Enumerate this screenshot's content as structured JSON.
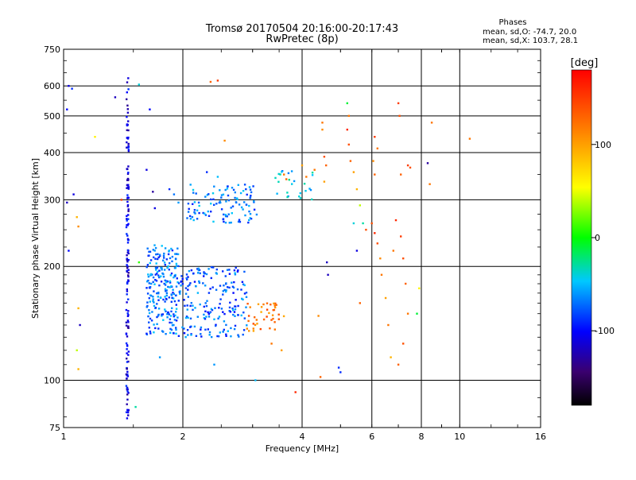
{
  "header": {
    "title_line1": "Tromsø 20170504 20:16:00-20:17:43",
    "title_line2": "RwPretec (8p)",
    "stats_heading": "Phases",
    "stats_o": "mean, sd,O: -74.7, 20.0",
    "stats_x": "mean, sd,X: 103.7, 28.1"
  },
  "colorbar": {
    "unit_label": "[deg]",
    "ticks": [
      {
        "value": 100,
        "label": "100"
      },
      {
        "value": 0,
        "label": "0"
      },
      {
        "value": -100,
        "label": "-100"
      }
    ],
    "range": [
      -180,
      180
    ]
  },
  "chart_data": {
    "type": "scatter",
    "title": "Tromsø 20170504 20:16:00-20:17:43",
    "subtitle": "RwPretec (8p)",
    "xlabel": "Frequency [MHz]",
    "ylabel": "Stationary phase Virtual Height [km]",
    "xscale": "log",
    "yscale": "log",
    "xlim": [
      1,
      16
    ],
    "ylim": [
      75,
      750
    ],
    "xticks": [
      1,
      2,
      4,
      6,
      8,
      10,
      16
    ],
    "yticks": [
      75,
      100,
      200,
      300,
      400,
      500,
      600,
      750
    ],
    "xgrid": [
      2,
      4,
      6,
      8,
      10
    ],
    "ygrid": [
      100,
      200,
      300,
      400,
      500,
      600
    ],
    "color_variable": "phase [deg]",
    "clusters": [
      {
        "name": "vertical streak",
        "f_min": 1.44,
        "f_max": 1.46,
        "h_min": 78,
        "h_max": 635,
        "phase": -110,
        "count": 150
      },
      {
        "name": "lower trace A",
        "f_min": 1.62,
        "f_max": 1.95,
        "h_min": 132,
        "h_max": 228,
        "phase": -70,
        "count": 220
      },
      {
        "name": "lower trace B",
        "f_min": 1.95,
        "f_max": 2.9,
        "h_min": 130,
        "h_max": 200,
        "phase": -75,
        "count": 200
      },
      {
        "name": "upper trace",
        "f_min": 2.05,
        "f_max": 3.1,
        "h_min": 260,
        "h_max": 330,
        "phase": -68,
        "count": 110
      },
      {
        "name": "mixed phase patch",
        "f_min": 2.9,
        "f_max": 3.6,
        "h_min": 135,
        "h_max": 160,
        "phase": 120,
        "count": 40
      },
      {
        "name": "rising trace",
        "f_min": 3.4,
        "f_max": 4.3,
        "h_min": 300,
        "h_max": 360,
        "phase": -50,
        "count": 25
      }
    ],
    "points": [
      {
        "f": 1.03,
        "h": 600,
        "phase": -110
      },
      {
        "f": 1.05,
        "h": 590,
        "phase": -90
      },
      {
        "f": 1.02,
        "h": 520,
        "phase": -100
      },
      {
        "f": 1.06,
        "h": 310,
        "phase": -110
      },
      {
        "f": 1.02,
        "h": 295,
        "phase": -120
      },
      {
        "f": 1.08,
        "h": 270,
        "phase": 90
      },
      {
        "f": 1.09,
        "h": 255,
        "phase": 110
      },
      {
        "f": 1.03,
        "h": 220,
        "phase": -100
      },
      {
        "f": 1.09,
        "h": 155,
        "phase": 90
      },
      {
        "f": 1.1,
        "h": 140,
        "phase": -120
      },
      {
        "f": 1.08,
        "h": 120,
        "phase": 40
      },
      {
        "f": 1.09,
        "h": 107,
        "phase": 90
      },
      {
        "f": 1.2,
        "h": 440,
        "phase": 60
      },
      {
        "f": 1.35,
        "h": 560,
        "phase": -120
      },
      {
        "f": 1.4,
        "h": 300,
        "phase": 150
      },
      {
        "f": 1.55,
        "h": 605,
        "phase": -40
      },
      {
        "f": 1.52,
        "h": 85,
        "phase": -30
      },
      {
        "f": 1.55,
        "h": 205,
        "phase": 10
      },
      {
        "f": 1.62,
        "h": 360,
        "phase": -110
      },
      {
        "f": 1.65,
        "h": 520,
        "phase": -100
      },
      {
        "f": 1.68,
        "h": 315,
        "phase": -130
      },
      {
        "f": 1.7,
        "h": 285,
        "phase": -110
      },
      {
        "f": 1.85,
        "h": 320,
        "phase": -90
      },
      {
        "f": 1.9,
        "h": 310,
        "phase": -70
      },
      {
        "f": 1.95,
        "h": 295,
        "phase": -60
      },
      {
        "f": 2.35,
        "h": 615,
        "phase": 130
      },
      {
        "f": 2.45,
        "h": 620,
        "phase": 150
      },
      {
        "f": 2.55,
        "h": 430,
        "phase": 110
      },
      {
        "f": 2.3,
        "h": 355,
        "phase": -90
      },
      {
        "f": 2.45,
        "h": 345,
        "phase": -50
      },
      {
        "f": 1.75,
        "h": 115,
        "phase": -60
      },
      {
        "f": 2.4,
        "h": 110,
        "phase": -60
      },
      {
        "f": 3.05,
        "h": 100,
        "phase": -50
      },
      {
        "f": 3.35,
        "h": 125,
        "phase": 120
      },
      {
        "f": 3.55,
        "h": 120,
        "phase": 100
      },
      {
        "f": 3.6,
        "h": 350,
        "phase": 120
      },
      {
        "f": 3.65,
        "h": 340,
        "phase": 130
      },
      {
        "f": 3.85,
        "h": 93,
        "phase": 160
      },
      {
        "f": 4.0,
        "h": 370,
        "phase": 100
      },
      {
        "f": 4.1,
        "h": 345,
        "phase": 120
      },
      {
        "f": 4.3,
        "h": 360,
        "phase": 120
      },
      {
        "f": 4.5,
        "h": 480,
        "phase": 120
      },
      {
        "f": 4.5,
        "h": 460,
        "phase": 110
      },
      {
        "f": 4.55,
        "h": 390,
        "phase": 140
      },
      {
        "f": 4.6,
        "h": 370,
        "phase": 130
      },
      {
        "f": 4.55,
        "h": 335,
        "phase": 100
      },
      {
        "f": 4.4,
        "h": 148,
        "phase": 110
      },
      {
        "f": 4.45,
        "h": 102,
        "phase": 130
      },
      {
        "f": 4.62,
        "h": 205,
        "phase": -120
      },
      {
        "f": 4.65,
        "h": 190,
        "phase": -120
      },
      {
        "f": 4.95,
        "h": 108,
        "phase": -90
      },
      {
        "f": 5.0,
        "h": 105,
        "phase": -90
      },
      {
        "f": 5.2,
        "h": 540,
        "phase": -10
      },
      {
        "f": 5.25,
        "h": 500,
        "phase": 120
      },
      {
        "f": 5.2,
        "h": 460,
        "phase": 160
      },
      {
        "f": 5.25,
        "h": 420,
        "phase": 140
      },
      {
        "f": 5.3,
        "h": 380,
        "phase": 130
      },
      {
        "f": 5.4,
        "h": 355,
        "phase": 100
      },
      {
        "f": 5.5,
        "h": 320,
        "phase": 90
      },
      {
        "f": 5.6,
        "h": 290,
        "phase": 40
      },
      {
        "f": 5.4,
        "h": 260,
        "phase": -40
      },
      {
        "f": 5.7,
        "h": 260,
        "phase": -30
      },
      {
        "f": 5.8,
        "h": 250,
        "phase": 140
      },
      {
        "f": 5.5,
        "h": 220,
        "phase": -110
      },
      {
        "f": 5.6,
        "h": 160,
        "phase": 130
      },
      {
        "f": 6.1,
        "h": 440,
        "phase": 150
      },
      {
        "f": 6.2,
        "h": 410,
        "phase": 120
      },
      {
        "f": 6.05,
        "h": 380,
        "phase": 110
      },
      {
        "f": 6.1,
        "h": 350,
        "phase": 130
      },
      {
        "f": 6.0,
        "h": 260,
        "phase": 140
      },
      {
        "f": 6.1,
        "h": 245,
        "phase": 160
      },
      {
        "f": 6.2,
        "h": 230,
        "phase": 140
      },
      {
        "f": 6.3,
        "h": 210,
        "phase": 110
      },
      {
        "f": 6.35,
        "h": 190,
        "phase": 120
      },
      {
        "f": 6.5,
        "h": 165,
        "phase": 100
      },
      {
        "f": 6.6,
        "h": 140,
        "phase": 120
      },
      {
        "f": 6.7,
        "h": 115,
        "phase": 90
      },
      {
        "f": 6.8,
        "h": 220,
        "phase": 120
      },
      {
        "f": 6.9,
        "h": 265,
        "phase": 160
      },
      {
        "f": 7.0,
        "h": 540,
        "phase": 150
      },
      {
        "f": 7.05,
        "h": 500,
        "phase": 140
      },
      {
        "f": 7.1,
        "h": 350,
        "phase": 130
      },
      {
        "f": 7.1,
        "h": 240,
        "phase": 150
      },
      {
        "f": 7.2,
        "h": 210,
        "phase": 140
      },
      {
        "f": 7.3,
        "h": 180,
        "phase": 130
      },
      {
        "f": 7.4,
        "h": 150,
        "phase": 120
      },
      {
        "f": 7.2,
        "h": 125,
        "phase": 140
      },
      {
        "f": 7.0,
        "h": 110,
        "phase": 130
      },
      {
        "f": 7.4,
        "h": 370,
        "phase": 150
      },
      {
        "f": 7.5,
        "h": 365,
        "phase": 140
      },
      {
        "f": 7.8,
        "h": 150,
        "phase": -10
      },
      {
        "f": 7.9,
        "h": 175,
        "phase": 60
      },
      {
        "f": 8.3,
        "h": 375,
        "phase": -130
      },
      {
        "f": 8.5,
        "h": 480,
        "phase": 120
      },
      {
        "f": 8.4,
        "h": 330,
        "phase": 120
      },
      {
        "f": 10.6,
        "h": 435,
        "phase": 120
      }
    ]
  }
}
